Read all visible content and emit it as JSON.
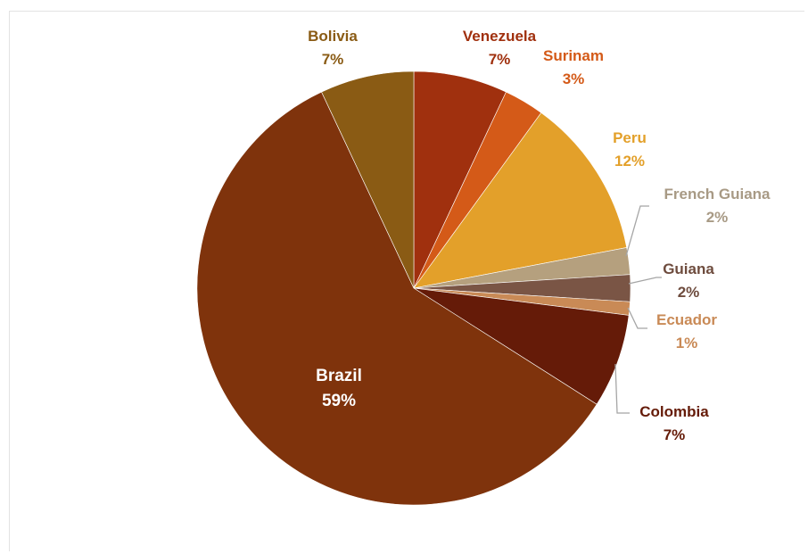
{
  "chart_data": {
    "type": "pie",
    "title": "",
    "slices": [
      {
        "name": "Venezuela",
        "label": "7%",
        "value": 7,
        "color": "#A0300E"
      },
      {
        "name": "Surinam",
        "label": "3%",
        "value": 3,
        "color": "#D45A18"
      },
      {
        "name": "Peru",
        "label": "12%",
        "value": 12,
        "color": "#E3A02A"
      },
      {
        "name": "French Guiana",
        "label": "2%",
        "value": 2,
        "color": "#B5A07E"
      },
      {
        "name": "Guiana",
        "label": "2%",
        "value": 2,
        "color": "#7A5545"
      },
      {
        "name": "Ecuador",
        "label": "1%",
        "value": 1,
        "color": "#C98A56"
      },
      {
        "name": "Colombia",
        "label": "7%",
        "value": 7,
        "color": "#651B08"
      },
      {
        "name": "Brazil",
        "label": "59%",
        "value": 59,
        "color": "#7F330C"
      },
      {
        "name": "Bolivia",
        "label": "7%",
        "value": 7,
        "color": "#8A5B14"
      }
    ],
    "label_colors": {
      "Venezuela": "#A0300E",
      "Surinam": "#D45A18",
      "Peru": "#E3A02A",
      "French Guiana": "#A89A85",
      "Guiana": "#6E4C3E",
      "Ecuador": "#C98A56",
      "Colombia": "#651B08",
      "Brazil": "#FFFFFF",
      "Bolivia": "#8A5B14"
    },
    "leader_line_color": "#A5A5A5",
    "legend": "none",
    "grid": false
  }
}
